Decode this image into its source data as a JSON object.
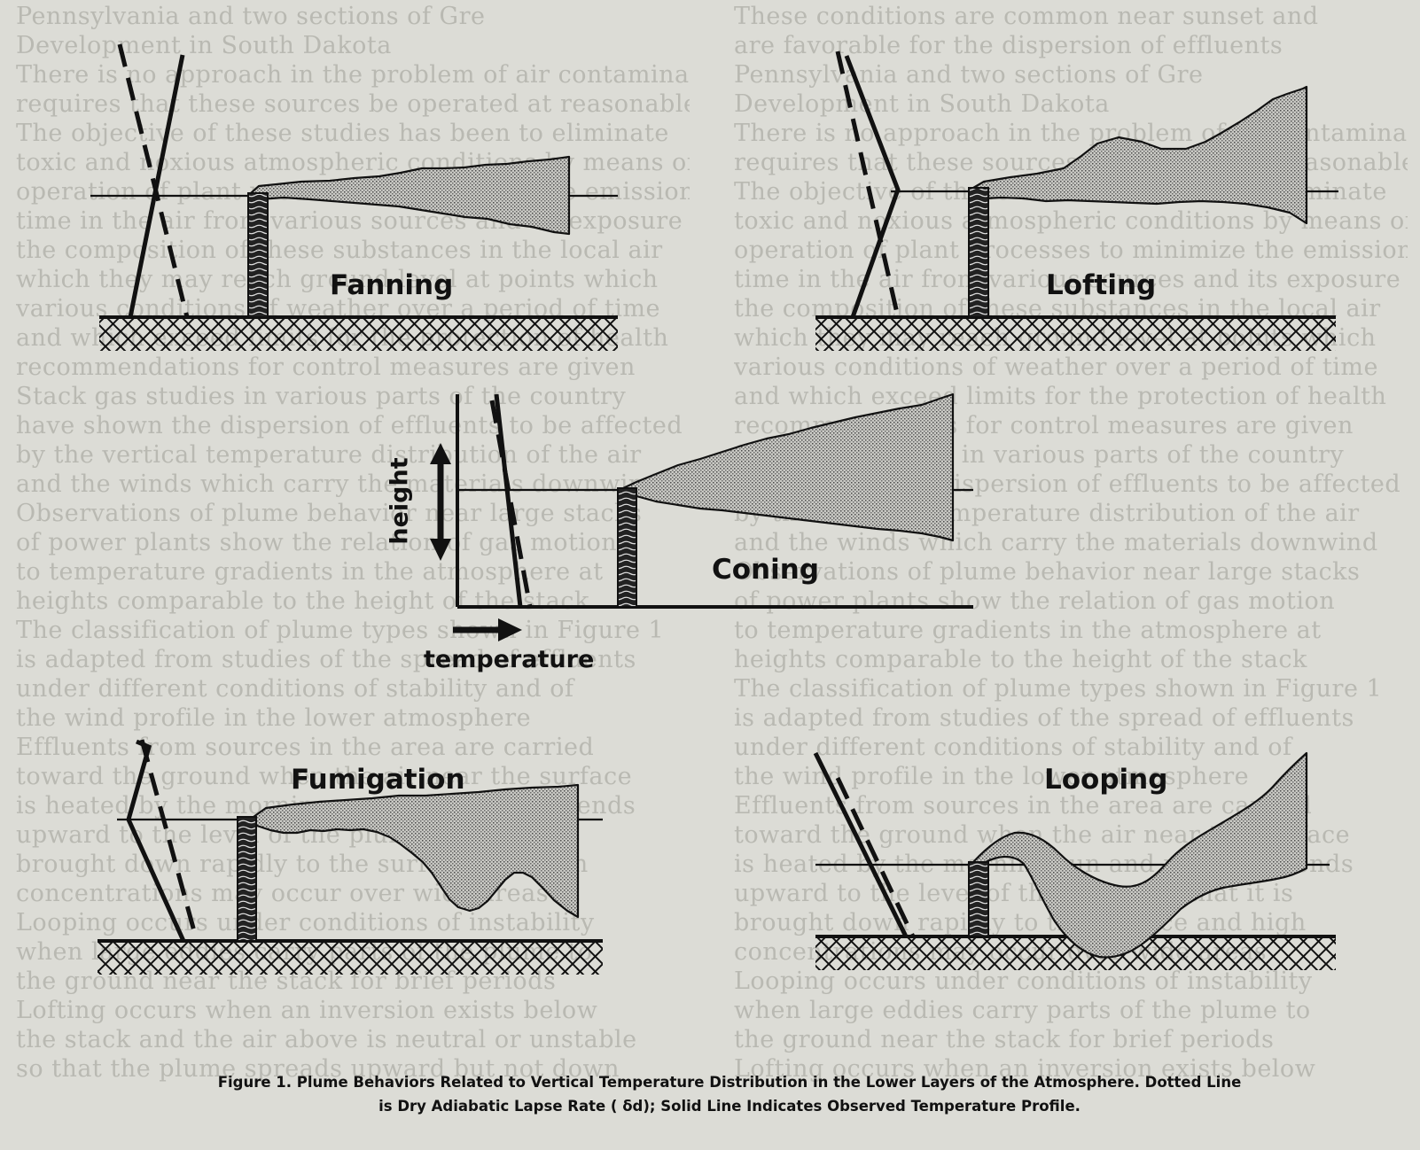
{
  "labels": {
    "fanning": "Fanning",
    "lofting": "Lofting",
    "coning": "Coning",
    "fumigation": "Fumigation",
    "looping": "Looping",
    "height": "height",
    "temperature": "temperature"
  },
  "caption": {
    "line1": "Figure 1. Plume Behaviors Related to Vertical Temperature Distribution in the Lower Layers of the Atmosphere. Dotted Line",
    "line2": "is Dry Adiabatic Lapse Rate ( δd); Solid Line Indicates Observed Temperature Profile."
  },
  "background_text": [
    "Pennsylvania and two sections of Gre",
    "Development in South Dakota",
    "There is no approach in the problem of air contamination",
    "requires that these sources be operated at reasonable cost",
    "The objective of these studies has been to eliminate",
    "toxic and noxious atmospheric conditions by means of the",
    "operation of plant processes to minimize the emission",
    "time in the air from various sources and its exposure",
    "the composition of these substances in the local air",
    "which they may reach ground level at points which",
    "various conditions of weather over a period of time",
    "and which exceed limits for the protection of health",
    "recommendations for control measures are given",
    "Stack gas studies in various parts of the country",
    "have shown the dispersion of effluents to be affected",
    "by the vertical temperature distribution of the air",
    "and the winds which carry the materials downwind",
    "Observations of plume behavior near large stacks",
    "of power plants show the relation of gas motion",
    "to temperature gradients in the atmosphere at",
    "heights comparable to the height of the stack",
    "The classification of plume types shown in Figure 1",
    "is adapted from studies of the spread of effluents",
    "under different conditions of stability and of",
    "the wind profile in the lower atmosphere",
    "Effluents from sources in the area are carried",
    "toward the ground when the air near the surface",
    "is heated by the morning sun and mixing extends",
    "upward to the level of the plume so that it is",
    "brought down rapidly to the surface and high",
    "concentrations may occur over wide areas",
    "Looping occurs under conditions of instability",
    "when large eddies carry parts of the plume to",
    "the ground near the stack for brief periods",
    "Lofting occurs when an inversion exists below",
    "the stack and the air above is neutral or unstable",
    "so that the plume spreads upward but not down",
    "These conditions are common near sunset and",
    "are favorable for the dispersion of effluents"
  ]
}
